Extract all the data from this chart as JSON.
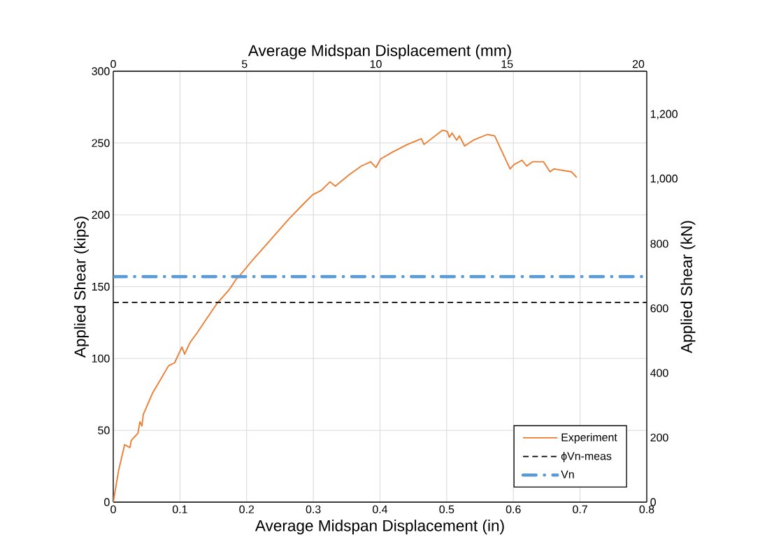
{
  "chart_data": {
    "type": "line",
    "xlabel": "Average Midspan Displacement (in)",
    "ylabel": "Applied Shear (kips)",
    "y2label": "Applied Shear (kN)",
    "x2label": "Average Midspan Displacement (mm)",
    "xlim": [
      0,
      0.8
    ],
    "xticks": [
      0,
      0.1,
      0.2,
      0.3,
      0.4,
      0.5,
      0.6,
      0.7,
      0.8
    ],
    "ylim": [
      0,
      300
    ],
    "yticks": [
      0,
      50,
      100,
      150,
      200,
      250,
      300
    ],
    "y2lim": [
      0,
      1334.5
    ],
    "y2ticks": [
      0,
      200,
      400,
      600,
      800,
      {
        "value": 1000,
        "label": "1,000"
      },
      {
        "value": 1200,
        "label": "1,200"
      }
    ],
    "x2lim": [
      0,
      20.32
    ],
    "x2ticks": [
      0,
      5,
      10,
      15,
      20
    ],
    "grid": true,
    "legend": "bottom right",
    "marker": "none",
    "series": [
      {
        "name": "Experiment",
        "color": "#ed7d31",
        "line_style": "solid",
        "x": [
          0,
          0.008,
          0.017,
          0.025,
          0.027,
          0.037,
          0.04,
          0.043,
          0.045,
          0.059,
          0.073,
          0.083,
          0.092,
          0.103,
          0.107,
          0.115,
          0.126,
          0.139,
          0.155,
          0.174,
          0.184,
          0.19,
          0.208,
          0.229,
          0.246,
          0.263,
          0.284,
          0.299,
          0.312,
          0.325,
          0.333,
          0.354,
          0.372,
          0.386,
          0.394,
          0.401,
          0.42,
          0.441,
          0.462,
          0.466,
          0.494,
          0.501,
          0.504,
          0.508,
          0.515,
          0.519,
          0.527,
          0.54,
          0.561,
          0.572,
          0.595,
          0.601,
          0.613,
          0.62,
          0.629,
          0.645,
          0.655,
          0.661,
          0.687,
          0.695
        ],
        "values": [
          0,
          22,
          40,
          38,
          43,
          48,
          56,
          53,
          61,
          76,
          87,
          95,
          97,
          108,
          103,
          111,
          118,
          127,
          138,
          148,
          155,
          158,
          168,
          179,
          188,
          197,
          207,
          214,
          217,
          223,
          220,
          228,
          234,
          237,
          233,
          239,
          244,
          249,
          253,
          249,
          259,
          258,
          254,
          257,
          252,
          255,
          248,
          252,
          256,
          255,
          232,
          235,
          238,
          234,
          237,
          237,
          230,
          232,
          230,
          226
        ]
      },
      {
        "name": "ϕVn-meas",
        "color": "#000000",
        "line_style": "dashed",
        "x": [
          0,
          0.8
        ],
        "values": [
          139,
          139
        ]
      },
      {
        "name": "Vn",
        "color": "#5b9bd5",
        "line_style": "dashdot",
        "x": [
          0,
          0.8
        ],
        "values": [
          157,
          157
        ]
      }
    ]
  }
}
